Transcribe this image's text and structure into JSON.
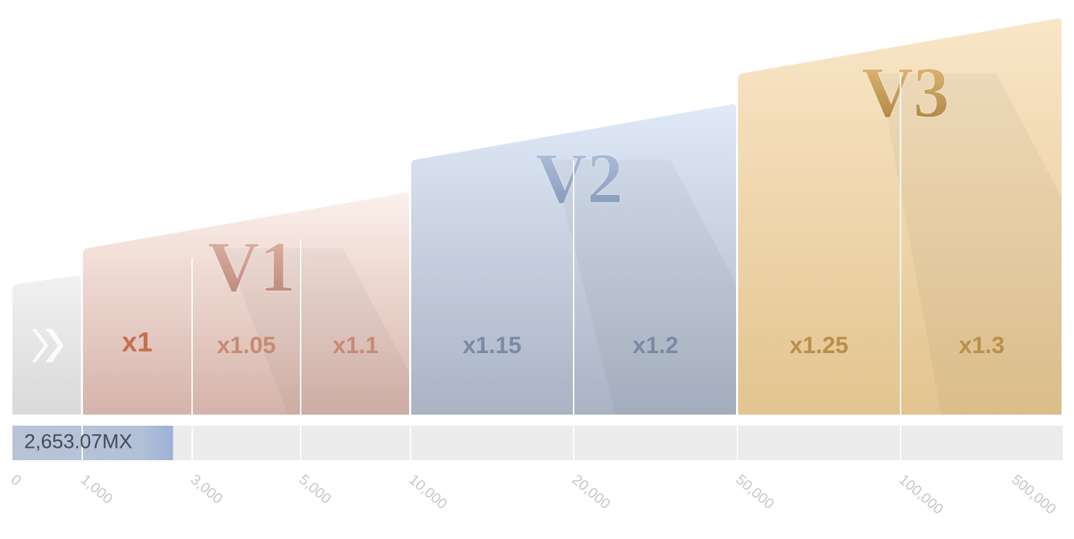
{
  "tiers": [
    {
      "name": "V1",
      "multipliers": [
        "x1",
        "x1.05",
        "x1.1"
      ]
    },
    {
      "name": "V2",
      "multipliers": [
        "x1.15",
        "x1.2"
      ]
    },
    {
      "name": "V3",
      "multipliers": [
        "x1.25",
        "x1.3"
      ]
    }
  ],
  "progress": {
    "value": 2653.07,
    "label": "2,653.07MX"
  },
  "scale": {
    "ticks": [
      0,
      {
        "value": 1000,
        "label": "1,000"
      },
      {
        "value": 3000,
        "label": "3,000"
      },
      {
        "value": 5000,
        "label": "5,000"
      },
      {
        "value": 10000,
        "label": "10,000"
      },
      {
        "value": 20000,
        "label": "20,000"
      },
      {
        "value": 50000,
        "label": "50,000"
      },
      {
        "value": 100000,
        "label": "100,000"
      },
      {
        "value": 500000,
        "label": "500,000"
      }
    ]
  }
}
